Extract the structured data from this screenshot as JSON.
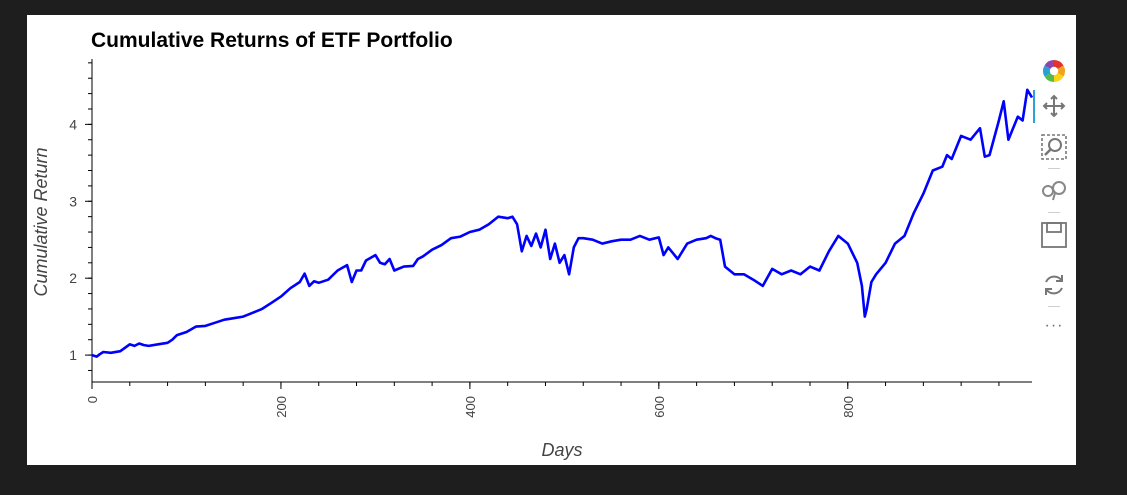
{
  "chart_data": {
    "type": "line",
    "title": "Cumulative Returns of ETF Portfolio",
    "xlabel": "Days",
    "ylabel": "Cumulative Return",
    "xlim": [
      0,
      995
    ],
    "ylim": [
      0.65,
      4.85
    ],
    "x_ticks": [
      0,
      200,
      400,
      600,
      800
    ],
    "y_ticks": [
      1,
      2,
      3,
      4
    ],
    "grid": false,
    "series": [
      {
        "color": "#0000ff",
        "x": [
          0,
          5,
          8,
          12,
          20,
          30,
          40,
          45,
          50,
          55,
          60,
          70,
          80,
          85,
          90,
          100,
          110,
          120,
          130,
          140,
          150,
          160,
          170,
          180,
          190,
          200,
          210,
          220,
          225,
          230,
          235,
          240,
          250,
          260,
          270,
          275,
          280,
          285,
          290,
          300,
          305,
          310,
          315,
          320,
          330,
          340,
          345,
          350,
          360,
          370,
          380,
          390,
          400,
          410,
          420,
          430,
          440,
          445,
          450,
          455,
          460,
          465,
          470,
          475,
          480,
          485,
          490,
          495,
          500,
          505,
          510,
          515,
          520,
          530,
          540,
          550,
          560,
          570,
          580,
          590,
          600,
          605,
          610,
          620,
          630,
          640,
          650,
          655,
          660,
          665,
          670,
          680,
          690,
          700,
          710,
          720,
          730,
          740,
          750,
          760,
          770,
          780,
          790,
          800,
          810,
          815,
          818,
          820,
          825,
          830,
          840,
          850,
          860,
          870,
          880,
          890,
          900,
          905,
          910,
          920,
          930,
          940,
          945,
          950,
          960,
          965,
          970,
          980,
          985,
          990,
          995
        ],
        "y": [
          1.0,
          0.98,
          1.01,
          1.04,
          1.03,
          1.05,
          1.14,
          1.12,
          1.15,
          1.13,
          1.12,
          1.14,
          1.16,
          1.2,
          1.26,
          1.3,
          1.37,
          1.38,
          1.42,
          1.46,
          1.48,
          1.5,
          1.55,
          1.6,
          1.68,
          1.76,
          1.87,
          1.95,
          2.06,
          1.9,
          1.96,
          1.94,
          1.98,
          2.1,
          2.17,
          1.95,
          2.1,
          2.1,
          2.23,
          2.3,
          2.2,
          2.18,
          2.25,
          2.1,
          2.15,
          2.16,
          2.25,
          2.28,
          2.37,
          2.43,
          2.52,
          2.54,
          2.6,
          2.63,
          2.7,
          2.8,
          2.78,
          2.8,
          2.7,
          2.35,
          2.55,
          2.42,
          2.58,
          2.4,
          2.63,
          2.25,
          2.45,
          2.2,
          2.3,
          2.05,
          2.4,
          2.52,
          2.52,
          2.5,
          2.45,
          2.48,
          2.5,
          2.5,
          2.55,
          2.5,
          2.53,
          2.3,
          2.4,
          2.25,
          2.45,
          2.5,
          2.52,
          2.55,
          2.52,
          2.5,
          2.15,
          2.05,
          2.05,
          1.98,
          1.9,
          2.12,
          2.05,
          2.1,
          2.05,
          2.15,
          2.1,
          2.35,
          2.55,
          2.45,
          2.2,
          1.9,
          1.5,
          1.6,
          1.95,
          2.05,
          2.2,
          2.45,
          2.55,
          2.85,
          3.1,
          3.4,
          3.45,
          3.6,
          3.55,
          3.85,
          3.8,
          3.95,
          3.58,
          3.6,
          4.05,
          4.3,
          3.8,
          4.1,
          4.05,
          4.45,
          4.35
        ]
      }
    ]
  },
  "toolbar": {
    "tools": [
      "bokeh-logo-icon",
      "pan-icon",
      "box-zoom-icon",
      "wheel-zoom-icon",
      "save-icon",
      "reset-icon",
      "more-icon"
    ],
    "more_label": "···"
  }
}
